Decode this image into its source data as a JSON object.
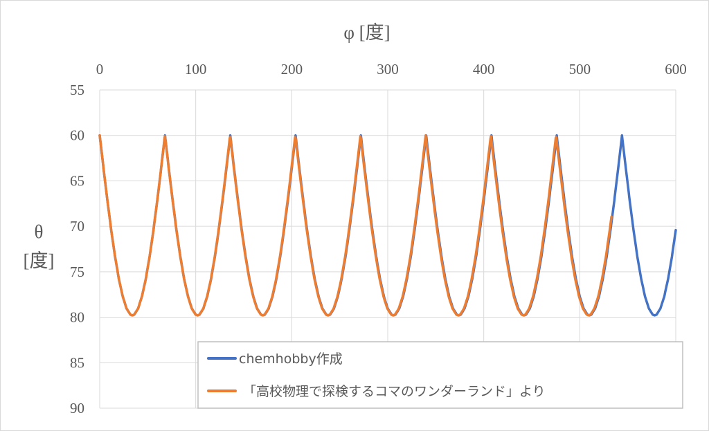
{
  "chart_data": {
    "type": "line",
    "title": "",
    "xlabel": "φ [度]",
    "ylabel_line1": "θ",
    "ylabel_line2": "[度]",
    "xlim": [
      0,
      600
    ],
    "ylim": [
      55,
      90
    ],
    "y_inverted": true,
    "x_axis_position": "top",
    "xticks": [
      "0",
      "100",
      "200",
      "300",
      "400",
      "500",
      "600"
    ],
    "yticks": [
      "55",
      "60",
      "65",
      "70",
      "75",
      "80",
      "85",
      "90"
    ],
    "grid": true,
    "legend_position": "bottom-right",
    "period_profile": {
      "description_period": 68,
      "phi": [
        0,
        4,
        8,
        12,
        16,
        20,
        24,
        28,
        32,
        34,
        36,
        40,
        44,
        48,
        52,
        56,
        60,
        64,
        68
      ],
      "theta": [
        60,
        63.64,
        67.15,
        70.42,
        73.34,
        75.8,
        77.72,
        79.04,
        79.71,
        79.8,
        79.71,
        79.04,
        77.72,
        75.8,
        73.34,
        70.42,
        67.15,
        63.64,
        60
      ]
    },
    "series": [
      {
        "name": "chemhobby作成",
        "color": "#4472C4",
        "phi_start": 0,
        "phi_end": 600,
        "period": 68.0
      },
      {
        "name": "「高校物理で探検するコマのワンダーランド」より",
        "color": "#ED7D31",
        "phi_start": 0,
        "phi_end": 533,
        "period": 67.9
      }
    ]
  }
}
